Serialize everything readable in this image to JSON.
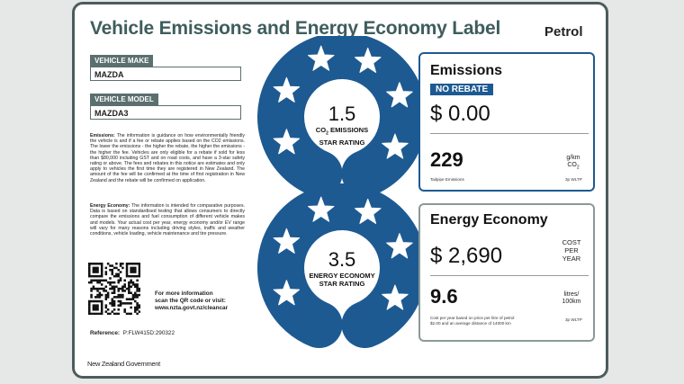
{
  "header": {
    "title": "Vehicle Emissions and Energy Economy Label",
    "fuel": "Petrol"
  },
  "vehicle": {
    "make_label": "VEHICLE MAKE",
    "make": "MAZDA",
    "model_label": "VEHICLE MODEL",
    "model": "MAZDA3"
  },
  "notes": {
    "emissions_heading": "Emissions:",
    "emissions_text": "The information is guidance on how environmentally friendly the vehicle is and if a fee or rebate applies based on the CO2 emissions. The lower the emissions - the higher the rebate, the higher the emissions - the higher the fee. Vehicles are only eligible for a rebate if sold for less than $80,000 including GST and on road costs, and have a 3-star safety rating or above. The fees and rebates in this notice are estimates and only apply to vehicles the first time they are registered in New Zealand. The amount of the fee will be confirmed at the time of first registration in New Zealand and the rebate will be confirmed on application.",
    "economy_heading": "Energy Economy:",
    "economy_text": "The information is intended for comparative purposes. Data is based on standardised testing that allows consumers to directly compare the emissions and fuel consumption of different vehicle makes and models. Your actual cost per year, energy economy and/or EV range will vary for many reasons including driving styles, traffic and weather conditions, vehicle loading, vehicle maintenance and tire pressure."
  },
  "info": {
    "line1": "For more information",
    "line2": "scan the QR code or visit:",
    "url": "www.nzta.govt.nz/cleancar"
  },
  "reference": {
    "label": "Reference:",
    "code": "P:FLW415D:290322"
  },
  "footer": "New Zealand Government",
  "emissions_rating": {
    "value": 1.5,
    "co": "CO",
    "sub": "2",
    "rest": " EMISSIONS",
    "line2": "STAR RATING"
  },
  "economy_rating": {
    "value": 3.5,
    "line1": "ENERGY ECONOMY",
    "line2": "STAR RATING"
  },
  "emissions": {
    "heading": "Emissions",
    "badge": "NO REBATE",
    "amount": "$ 0.00",
    "value": 229,
    "unit1": "g/km",
    "unit2": "CO",
    "unit2_sub": "2",
    "caption": "Tailpipe Emissions",
    "standard": "3p WLTP"
  },
  "economy": {
    "heading": "Energy Economy",
    "amount": "$ 2,690",
    "cost1": "COST",
    "cost2": "PER",
    "cost3": "YEAR",
    "value": 9.6,
    "unit1": "litres/",
    "unit2": "100km",
    "caption1": "Cost per year based on price per litre of petrol",
    "caption2": "$2.00 and an average distance of 14000 km",
    "standard": "3p WLTP"
  }
}
